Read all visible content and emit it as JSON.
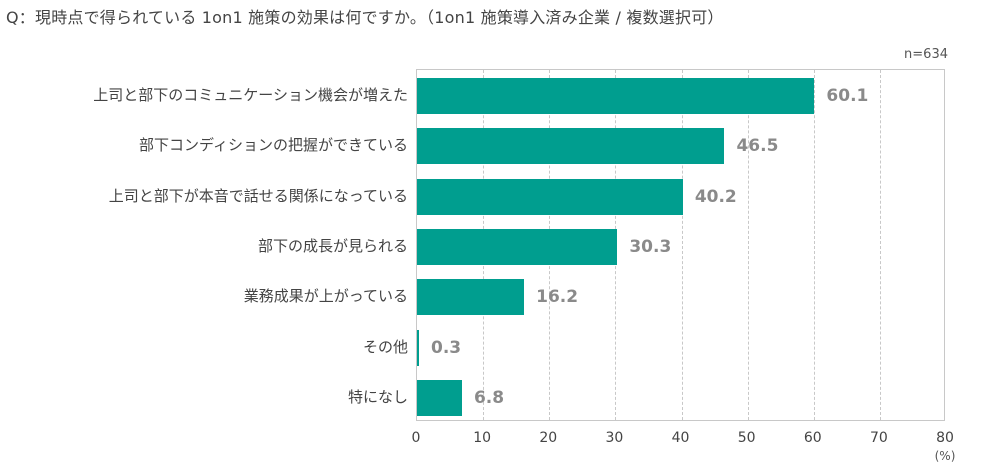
{
  "title": "Q：現時点で得られている 1on1 施策の効果は何ですか。（1on1 施策導入済み企業 / 複数選択可）",
  "sample_size": "n=634",
  "unit_label": "(%)",
  "bar_color": "#009e8f",
  "chart_data": {
    "type": "bar",
    "orientation": "horizontal",
    "title": "Q：現時点で得られている 1on1 施策の効果は何ですか。（1on1 施策導入済み企業 / 複数選択可）",
    "subtitle": "n=634",
    "categories": [
      "上司と部下のコミュニケーション機会が増えた",
      "部下コンディションの把握ができている",
      "上司と部下が本音で話せる関係になっている",
      "部下の成長が見られる",
      "業務成果が上がっている",
      "その他",
      "特になし"
    ],
    "values": [
      60.1,
      46.5,
      40.2,
      30.3,
      16.2,
      0.3,
      6.8
    ],
    "value_labels": [
      "60.1",
      "46.5",
      "40.2",
      "30.3",
      "16.2",
      "0.3",
      "6.8"
    ],
    "xlabel": "(%)",
    "ylabel": "",
    "xlim": [
      0,
      80
    ],
    "xticks": [
      "0",
      "10",
      "20",
      "30",
      "40",
      "50",
      "60",
      "70",
      "80"
    ],
    "grid": "vertical dashed",
    "legend": "none"
  }
}
